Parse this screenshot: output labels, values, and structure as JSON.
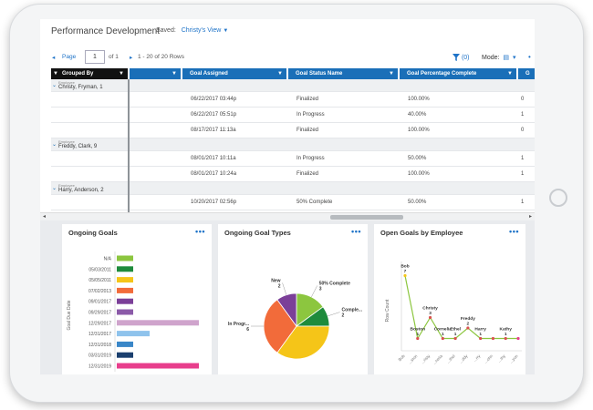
{
  "header": {
    "title": "Performance Development",
    "saved_label": "Saved:",
    "saved_view": "Christy's View"
  },
  "pager": {
    "prev": "◂",
    "page_label": "Page",
    "page_value": "1",
    "of": "of 1",
    "next": "▸",
    "rows": "1 - 20 of 20 Rows"
  },
  "toolbar": {
    "filter": "(0)",
    "mode_label": "Mode:",
    "more": "•"
  },
  "grid": {
    "columns": [
      "Grouped By",
      "Goal Assigned",
      "Goal Status Name",
      "Goal Percentage Complete",
      "G"
    ],
    "group_label": "Employee",
    "groups": [
      {
        "name": "Christy, Fryman, 1",
        "rows": [
          {
            "assigned": "06/22/2017 03:44p",
            "status": "Finalized",
            "percent": "100.00%",
            "extra": "0"
          },
          {
            "assigned": "06/22/2017 05:51p",
            "status": "In Progress",
            "percent": "40.00%",
            "extra": "1"
          },
          {
            "assigned": "08/17/2017 11:13a",
            "status": "Finalized",
            "percent": "100.00%",
            "extra": "0"
          }
        ]
      },
      {
        "name": "Freddy, Clark, 9",
        "rows": [
          {
            "assigned": "08/01/2017 10:11a",
            "status": "In Progress",
            "percent": "50.00%",
            "extra": "1"
          },
          {
            "assigned": "08/01/2017 10:24a",
            "status": "Finalized",
            "percent": "100.00%",
            "extra": "1"
          }
        ]
      },
      {
        "name": "Harry, Anderson, 2",
        "rows": [
          {
            "assigned": "10/20/2017 02:56p",
            "status": "50% Complete",
            "percent": "50.00%",
            "extra": "1"
          }
        ]
      }
    ]
  },
  "panels": {
    "ongoing_goals": {
      "title": "Ongoing Goals",
      "more": "•••"
    },
    "goal_types": {
      "title": "Ongoing Goal Types",
      "more": "•••"
    },
    "by_employee": {
      "title": "Open Goals by Employee",
      "more": "•••"
    }
  },
  "chart_data": [
    {
      "type": "bar",
      "orientation": "horizontal",
      "title": "Ongoing Goals",
      "ylabel": "Goal Due Date",
      "categories": [
        "N/A",
        "05/03/2011",
        "05/05/2011",
        "07/02/2013",
        "09/01/2017",
        "09/29/2017",
        "12/29/2017",
        "12/31/2017",
        "12/31/2018",
        "03/31/2019",
        "12/31/2019"
      ],
      "values": [
        1,
        1,
        1,
        1,
        1,
        1,
        5,
        2,
        1,
        1,
        5
      ],
      "colors": [
        "#8cc63f",
        "#1e8b3c",
        "#f5c518",
        "#f26b3a",
        "#7b3f98",
        "#8b5aa8",
        "#cfa4cc",
        "#8fc3ec",
        "#3a87c8",
        "#1b3f6e",
        "#e83e8c"
      ]
    },
    {
      "type": "pie",
      "title": "Ongoing Goal Types",
      "slices": [
        {
          "label": "50% Complete",
          "value": 3,
          "color": "#8cc63f"
        },
        {
          "label": "Comple...",
          "value": 2,
          "color": "#1e8b3c"
        },
        {
          "label": "",
          "value": 7,
          "color": "#f5c518"
        },
        {
          "label": "In Progr...",
          "value": 6,
          "color": "#f26b3a"
        },
        {
          "label": "New",
          "value": 2,
          "color": "#7b3f98"
        }
      ]
    },
    {
      "type": "line",
      "title": "Open Goals by Employee",
      "ylabel": "Row Count",
      "categories": [
        "Bob",
        "Boston",
        "Christy",
        "Cornelia",
        "Ethel",
        "Freddy",
        "Harry",
        "John",
        "Kathy",
        "Kenyon"
      ],
      "tick_labels": [
        "Bob",
        "...ston",
        "...risty",
        "...nelia",
        "...thel",
        "...ddy",
        "...rry",
        "...ohn",
        "...thy",
        "...yon"
      ],
      "series": [
        {
          "values": [
            7,
            1,
            3,
            1,
            1,
            2,
            1,
            1,
            1,
            1
          ],
          "color": "#8cc63f"
        }
      ],
      "annotated": [
        {
          "index": 0,
          "name": "Bob",
          "value": "7"
        },
        {
          "index": 1,
          "name": "Boston",
          "value": "1"
        },
        {
          "index": 2,
          "name": "Christy",
          "value": "3"
        },
        {
          "index": 3,
          "name": "Cornelia",
          "value": "1"
        },
        {
          "index": 4,
          "name": "Ethel",
          "value": "1"
        },
        {
          "index": 5,
          "name": "Freddy",
          "value": "2"
        },
        {
          "index": 6,
          "name": "Harry",
          "value": "1"
        },
        {
          "index": 8,
          "name": "Kathy",
          "value": "1"
        }
      ],
      "ylim": [
        0,
        8
      ]
    }
  ]
}
